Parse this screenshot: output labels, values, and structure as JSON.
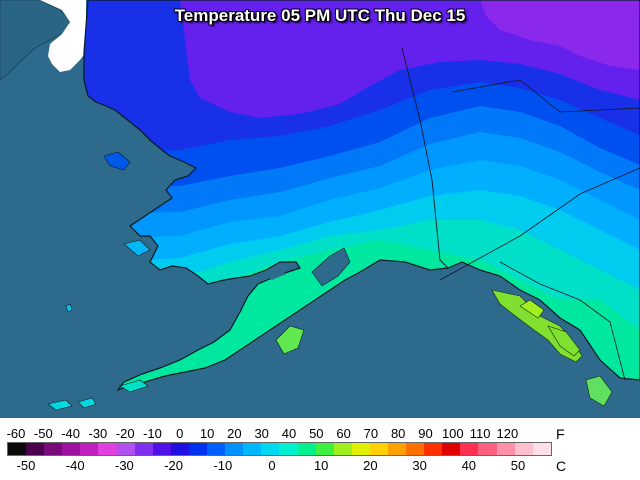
{
  "title": "Temperature 05 PM UTC Thu Dec 15",
  "legend": {
    "f_unit": "F",
    "c_unit": "C",
    "f_ticks": [
      "-60",
      "-50",
      "-40",
      "-30",
      "-20",
      "-10",
      "0",
      "10",
      "20",
      "30",
      "40",
      "50",
      "60",
      "70",
      "80",
      "90",
      "100",
      "110",
      "120"
    ],
    "c_ticks": [
      "-50",
      "-40",
      "-30",
      "-20",
      "-10",
      "0",
      "10",
      "20",
      "30",
      "40",
      "50"
    ],
    "colors": [
      "#0a0a0a",
      "#4a004a",
      "#7a0a7a",
      "#a010a0",
      "#c020c0",
      "#e040e0",
      "#b050f0",
      "#8030f0",
      "#5010e8",
      "#2010e0",
      "#0030f0",
      "#0060ff",
      "#0090ff",
      "#00b8ff",
      "#00d8f0",
      "#00f0d0",
      "#00f090",
      "#40f040",
      "#a0f020",
      "#e0f000",
      "#ffd000",
      "#ffa000",
      "#ff7000",
      "#ff3000",
      "#e00000",
      "#ff3050",
      "#ff6080",
      "#ff90a8",
      "#ffc0d0",
      "#ffe0ea"
    ]
  },
  "map_colors": {
    "ocean": "#2e6a8c",
    "canada_land": "#ffffff"
  }
}
